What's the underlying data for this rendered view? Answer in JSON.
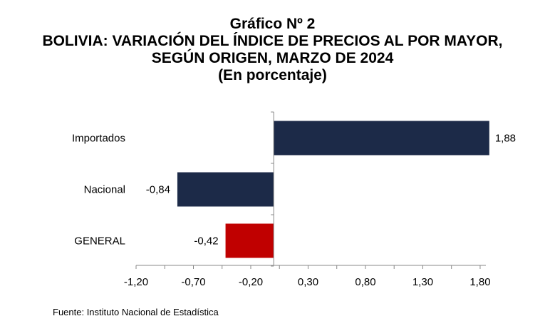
{
  "chart_data": {
    "type": "bar",
    "orientation": "horizontal",
    "title": "Gráfico Nº 2",
    "subtitle_lines": [
      "BOLIVIA: VARIACIÓN DEL ÍNDICE DE PRECIOS AL POR MAYOR,",
      "SEGÚN ORIGEN, MARZO DE 2024",
      "(En porcentaje)"
    ],
    "categories": [
      "Importados",
      "Nacional",
      "GENERAL"
    ],
    "values": [
      1.88,
      -0.84,
      -0.42
    ],
    "value_labels": [
      "1,88",
      "-0,84",
      "-0,42"
    ],
    "bar_colors": [
      "#1c2a48",
      "#1c2a48",
      "#c00000"
    ],
    "xlim": [
      -1.2,
      1.85
    ],
    "x_ticks": [
      -1.2,
      -0.7,
      -0.2,
      0.3,
      0.8,
      1.3,
      1.8
    ],
    "x_tick_labels": [
      "-1,20",
      "-0,70",
      "-0,20",
      "0,30",
      "0,80",
      "1,30",
      "1,80"
    ],
    "grid": false,
    "legend": "none"
  },
  "source": "Fuente: Instituto Nacional de Estadística"
}
